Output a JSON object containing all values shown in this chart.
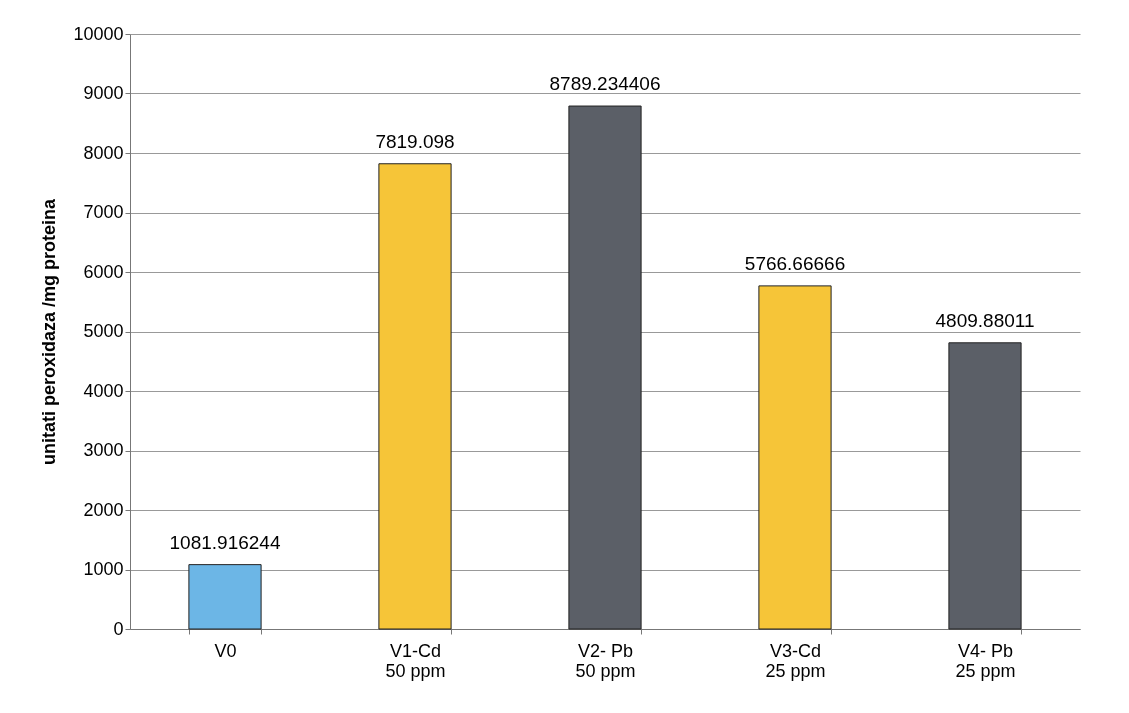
{
  "chart_data": {
    "type": "bar",
    "ylabel": "unitati peroxidaza /mg proteina",
    "categories": [
      "V0",
      "V1-Cd\n50  ppm",
      "V2- Pb\n50 ppm",
      "V3-Cd\n25 ppm",
      "V4- Pb\n25 ppm"
    ],
    "values": [
      1081.916244,
      7819.098,
      8789.234406,
      5766.66666,
      4809.88011
    ],
    "colors": [
      "#6cb6e6",
      "#f6c538",
      "#5b5f67",
      "#f6c538",
      "#5b5f67"
    ],
    "ylim": [
      0,
      10000
    ],
    "yticks": [
      0,
      1000,
      2000,
      3000,
      4000,
      5000,
      6000,
      7000,
      8000,
      9000,
      10000
    ],
    "grid": "y",
    "data_labels": true
  }
}
